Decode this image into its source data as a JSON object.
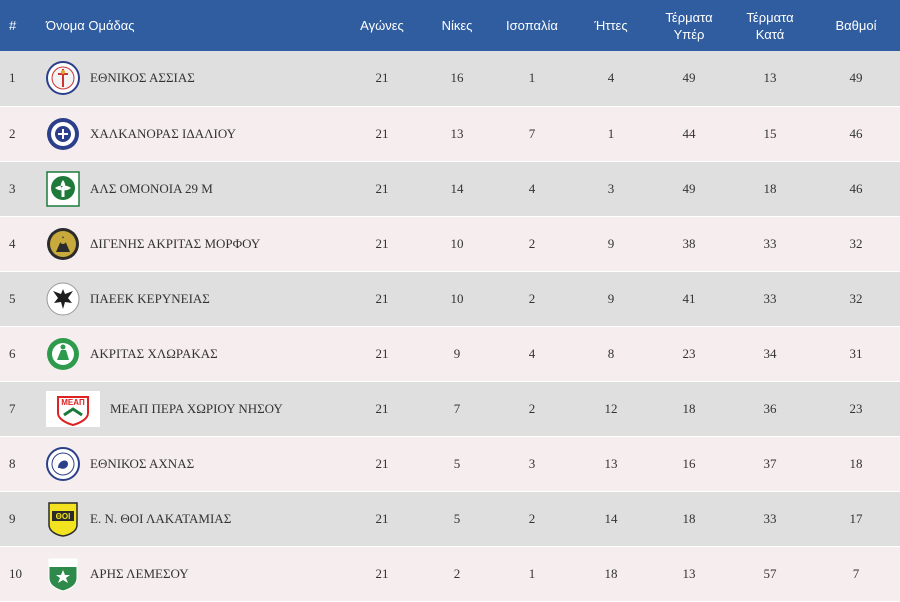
{
  "headers": {
    "rank": "#",
    "team": "Όνομα Ομάδας",
    "played": "Αγώνες",
    "wins": "Νίκες",
    "draws": "Ισοπαλία",
    "losses": "Ήττες",
    "goals_for_1": "Τέρματα",
    "goals_for_2": "Υπέρ",
    "goals_against_1": "Τέρματα",
    "goals_against_2": "Κατά",
    "points": "Βαθμοί"
  },
  "rows": [
    {
      "rank": "1",
      "team": "ΕΘΝΙΚΟΣ ΑΣΣΙΑΣ",
      "logo_icon": "ethnikos-assias-crest-icon",
      "played": "21",
      "wins": "16",
      "draws": "1",
      "losses": "4",
      "gf": "49",
      "ga": "13",
      "pts": "49"
    },
    {
      "rank": "2",
      "team": "ΧΑΛΚΑΝΟΡΑΣ ΙΔΑΛΙΟΥ",
      "logo_icon": "chalkanoras-crest-icon",
      "played": "21",
      "wins": "13",
      "draws": "7",
      "losses": "1",
      "gf": "44",
      "ga": "15",
      "pts": "46"
    },
    {
      "rank": "3",
      "team": "ΑΛΣ ΟΜΟΝΟΙΑ 29 Μ",
      "logo_icon": "omonoia-crest-icon",
      "played": "21",
      "wins": "14",
      "draws": "4",
      "losses": "3",
      "gf": "49",
      "ga": "18",
      "pts": "46"
    },
    {
      "rank": "4",
      "team": "ΔΙΓΕΝΗΣ ΑΚΡΙΤΑΣ ΜΟΡΦΟΥ",
      "logo_icon": "digenis-crest-icon",
      "played": "21",
      "wins": "10",
      "draws": "2",
      "losses": "9",
      "gf": "38",
      "ga": "33",
      "pts": "32"
    },
    {
      "rank": "5",
      "team": "ΠΑΕΕΚ ΚΕΡΥΝΕΙΑΣ",
      "logo_icon": "paeek-eagle-crest-icon",
      "played": "21",
      "wins": "10",
      "draws": "2",
      "losses": "9",
      "gf": "41",
      "ga": "33",
      "pts": "32"
    },
    {
      "rank": "6",
      "team": "ΑΚΡΙΤΑΣ ΧΛΩΡΑΚΑΣ",
      "logo_icon": "akritas-chlorakas-crest-icon",
      "played": "21",
      "wins": "9",
      "draws": "4",
      "losses": "8",
      "gf": "23",
      "ga": "34",
      "pts": "31"
    },
    {
      "rank": "7",
      "team": "ΜΕΑΠ ΠΕΡΑ ΧΩΡΙΟΥ ΝΗΣΟΥ",
      "logo_icon": "meap-crest-icon",
      "played": "21",
      "wins": "7",
      "draws": "2",
      "losses": "12",
      "gf": "18",
      "ga": "36",
      "pts": "23"
    },
    {
      "rank": "8",
      "team": "ΕΘΝΙΚΟΣ ΑΧΝΑΣ",
      "logo_icon": "ethnikos-achnas-crest-icon",
      "played": "21",
      "wins": "5",
      "draws": "3",
      "losses": "13",
      "gf": "16",
      "ga": "37",
      "pts": "18"
    },
    {
      "rank": "9",
      "team": "Ε. Ν. ΘΟΙ ΛΑΚΑΤΑΜΙΑΣ",
      "logo_icon": "thoi-crest-icon",
      "played": "21",
      "wins": "5",
      "draws": "2",
      "losses": "14",
      "gf": "18",
      "ga": "33",
      "pts": "17"
    },
    {
      "rank": "10",
      "team": "ΑΡΗΣ ΛΕΜΕΣΟΥ",
      "logo_icon": "aris-crest-icon",
      "played": "21",
      "wins": "2",
      "draws": "1",
      "losses": "18",
      "gf": "13",
      "ga": "57",
      "pts": "7"
    }
  ],
  "logo_texts": {
    "meap": "ΜΕΑΠ",
    "thoi": "ΘΟΙ"
  },
  "colors": {
    "header_bg": "#2f5d9f",
    "row_odd": "#dfdfdf",
    "row_even": "#f6eeee"
  }
}
